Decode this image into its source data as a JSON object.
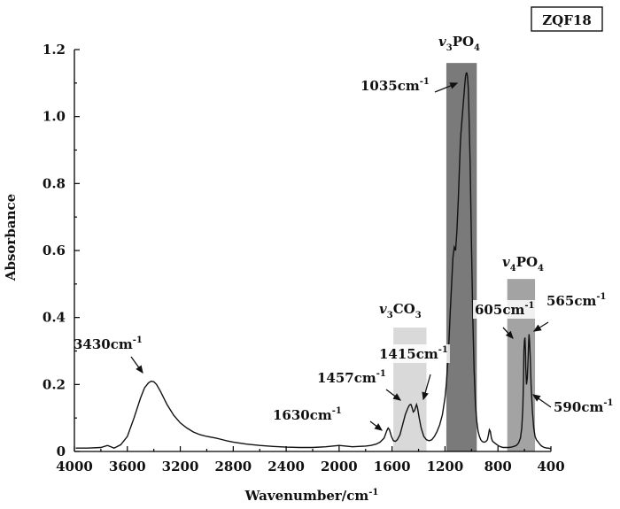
{
  "chart_data": {
    "type": "line",
    "title": "ZQF18",
    "xlabel": "Wavenumber/cm",
    "xlabel_sup": "-1",
    "ylabel": "Absorbance",
    "xlim": [
      4000,
      400
    ],
    "ylim": [
      0,
      1.2
    ],
    "x_ticks": [
      4000,
      3600,
      3200,
      2800,
      2400,
      2000,
      1600,
      1200,
      800,
      400
    ],
    "y_ticks": [
      0,
      0.2,
      0.4,
      0.6,
      0.8,
      1.0,
      1.2
    ],
    "y_tick_labels": [
      "0",
      "0.2",
      "0.4",
      "0.6",
      "0.8",
      "1.0",
      "1.2"
    ],
    "bands": [
      {
        "prefix": "v",
        "sub1": "3",
        "body": "CO",
        "sub2": "3",
        "x_from": 1590,
        "x_to": 1340,
        "y_top": 0.37,
        "color": "#d9d9d9"
      },
      {
        "prefix": "v",
        "sub1": "3",
        "body": "PO",
        "sub2": "4",
        "x_from": 1190,
        "x_to": 960,
        "y_top": 1.16,
        "color": "#7a7a7a"
      },
      {
        "prefix": "v",
        "sub1": "4",
        "body": "PO",
        "sub2": "4",
        "x_from": 730,
        "x_to": 520,
        "y_top": 0.515,
        "color": "#a3a3a3"
      }
    ],
    "annotations": [
      {
        "value": "3430",
        "unit": "cm",
        "sup": "-1",
        "x": 3430,
        "y": 0.21
      },
      {
        "value": "1630",
        "unit": "cm",
        "sup": "-1",
        "x": 1630,
        "y": 0.07
      },
      {
        "value": "1457",
        "unit": "cm",
        "sup": "-1",
        "x": 1457,
        "y": 0.14
      },
      {
        "value": "1415",
        "unit": "cm",
        "sup": "-1",
        "x": 1415,
        "y": 0.14
      },
      {
        "value": "1035",
        "unit": "cm",
        "sup": "-1",
        "x": 1035,
        "y": 1.13
      },
      {
        "value": "605",
        "unit": "cm",
        "sup": "-1",
        "x": 605,
        "y": 0.34
      },
      {
        "value": "565",
        "unit": "cm",
        "sup": "-1",
        "x": 565,
        "y": 0.35
      },
      {
        "value": "590",
        "unit": "cm",
        "sup": "-1",
        "x": 590,
        "y": 0.18
      }
    ],
    "series": [
      {
        "name": "ZQF18",
        "x": [
          3990,
          3900,
          3800,
          3750,
          3700,
          3650,
          3600,
          3550,
          3500,
          3470,
          3440,
          3420,
          3400,
          3380,
          3350,
          3300,
          3250,
          3200,
          3150,
          3100,
          3050,
          3000,
          2960,
          2930,
          2900,
          2850,
          2800,
          2700,
          2600,
          2500,
          2400,
          2300,
          2200,
          2100,
          2050,
          2000,
          1950,
          1900,
          1850,
          1800,
          1760,
          1720,
          1690,
          1660,
          1640,
          1630,
          1620,
          1605,
          1590,
          1575,
          1560,
          1540,
          1520,
          1500,
          1480,
          1470,
          1462,
          1457,
          1450,
          1440,
          1430,
          1420,
          1415,
          1408,
          1395,
          1380,
          1360,
          1340,
          1320,
          1300,
          1280,
          1260,
          1240,
          1220,
          1200,
          1190,
          1180,
          1170,
          1160,
          1150,
          1140,
          1130,
          1120,
          1110,
          1100,
          1095,
          1090,
          1085,
          1080,
          1070,
          1060,
          1050,
          1045,
          1040,
          1035,
          1030,
          1025,
          1020,
          1010,
          1000,
          990,
          980,
          970,
          960,
          950,
          940,
          930,
          920,
          910,
          900,
          890,
          880,
          872,
          865,
          858,
          850,
          840,
          820,
          800,
          780,
          760,
          740,
          720,
          700,
          680,
          660,
          645,
          630,
          620,
          612,
          607,
          604,
          600,
          596,
          592,
          590,
          585,
          578,
          572,
          568,
          565,
          561,
          556,
          550,
          540,
          530,
          520,
          510,
          500,
          490,
          480,
          470,
          460,
          450,
          440,
          430,
          420,
          410,
          400
        ],
        "values": [
          0.01,
          0.01,
          0.012,
          0.018,
          0.01,
          0.02,
          0.045,
          0.1,
          0.16,
          0.19,
          0.205,
          0.21,
          0.208,
          0.2,
          0.18,
          0.14,
          0.108,
          0.085,
          0.07,
          0.058,
          0.05,
          0.045,
          0.042,
          0.04,
          0.037,
          0.032,
          0.028,
          0.022,
          0.018,
          0.015,
          0.013,
          0.012,
          0.012,
          0.014,
          0.016,
          0.018,
          0.016,
          0.014,
          0.015,
          0.016,
          0.018,
          0.022,
          0.028,
          0.04,
          0.062,
          0.07,
          0.065,
          0.045,
          0.032,
          0.03,
          0.035,
          0.05,
          0.08,
          0.11,
          0.13,
          0.138,
          0.14,
          0.14,
          0.132,
          0.118,
          0.122,
          0.135,
          0.14,
          0.13,
          0.1,
          0.07,
          0.045,
          0.035,
          0.032,
          0.035,
          0.045,
          0.06,
          0.08,
          0.11,
          0.16,
          0.2,
          0.26,
          0.33,
          0.42,
          0.5,
          0.58,
          0.61,
          0.6,
          0.66,
          0.75,
          0.8,
          0.86,
          0.91,
          0.95,
          1.0,
          1.05,
          1.1,
          1.12,
          1.13,
          1.13,
          1.12,
          1.09,
          1.03,
          0.86,
          0.62,
          0.4,
          0.24,
          0.14,
          0.09,
          0.06,
          0.045,
          0.035,
          0.03,
          0.028,
          0.028,
          0.03,
          0.035,
          0.05,
          0.065,
          0.06,
          0.04,
          0.03,
          0.024,
          0.018,
          0.014,
          0.012,
          0.012,
          0.012,
          0.013,
          0.015,
          0.018,
          0.025,
          0.04,
          0.07,
          0.13,
          0.22,
          0.3,
          0.33,
          0.34,
          0.3,
          0.25,
          0.2,
          0.22,
          0.28,
          0.33,
          0.35,
          0.33,
          0.28,
          0.2,
          0.12,
          0.07,
          0.045,
          0.035,
          0.03,
          0.025,
          0.02,
          0.016,
          0.014,
          0.012,
          0.011,
          0.01,
          0.01,
          0.009,
          0.008
        ]
      }
    ]
  }
}
